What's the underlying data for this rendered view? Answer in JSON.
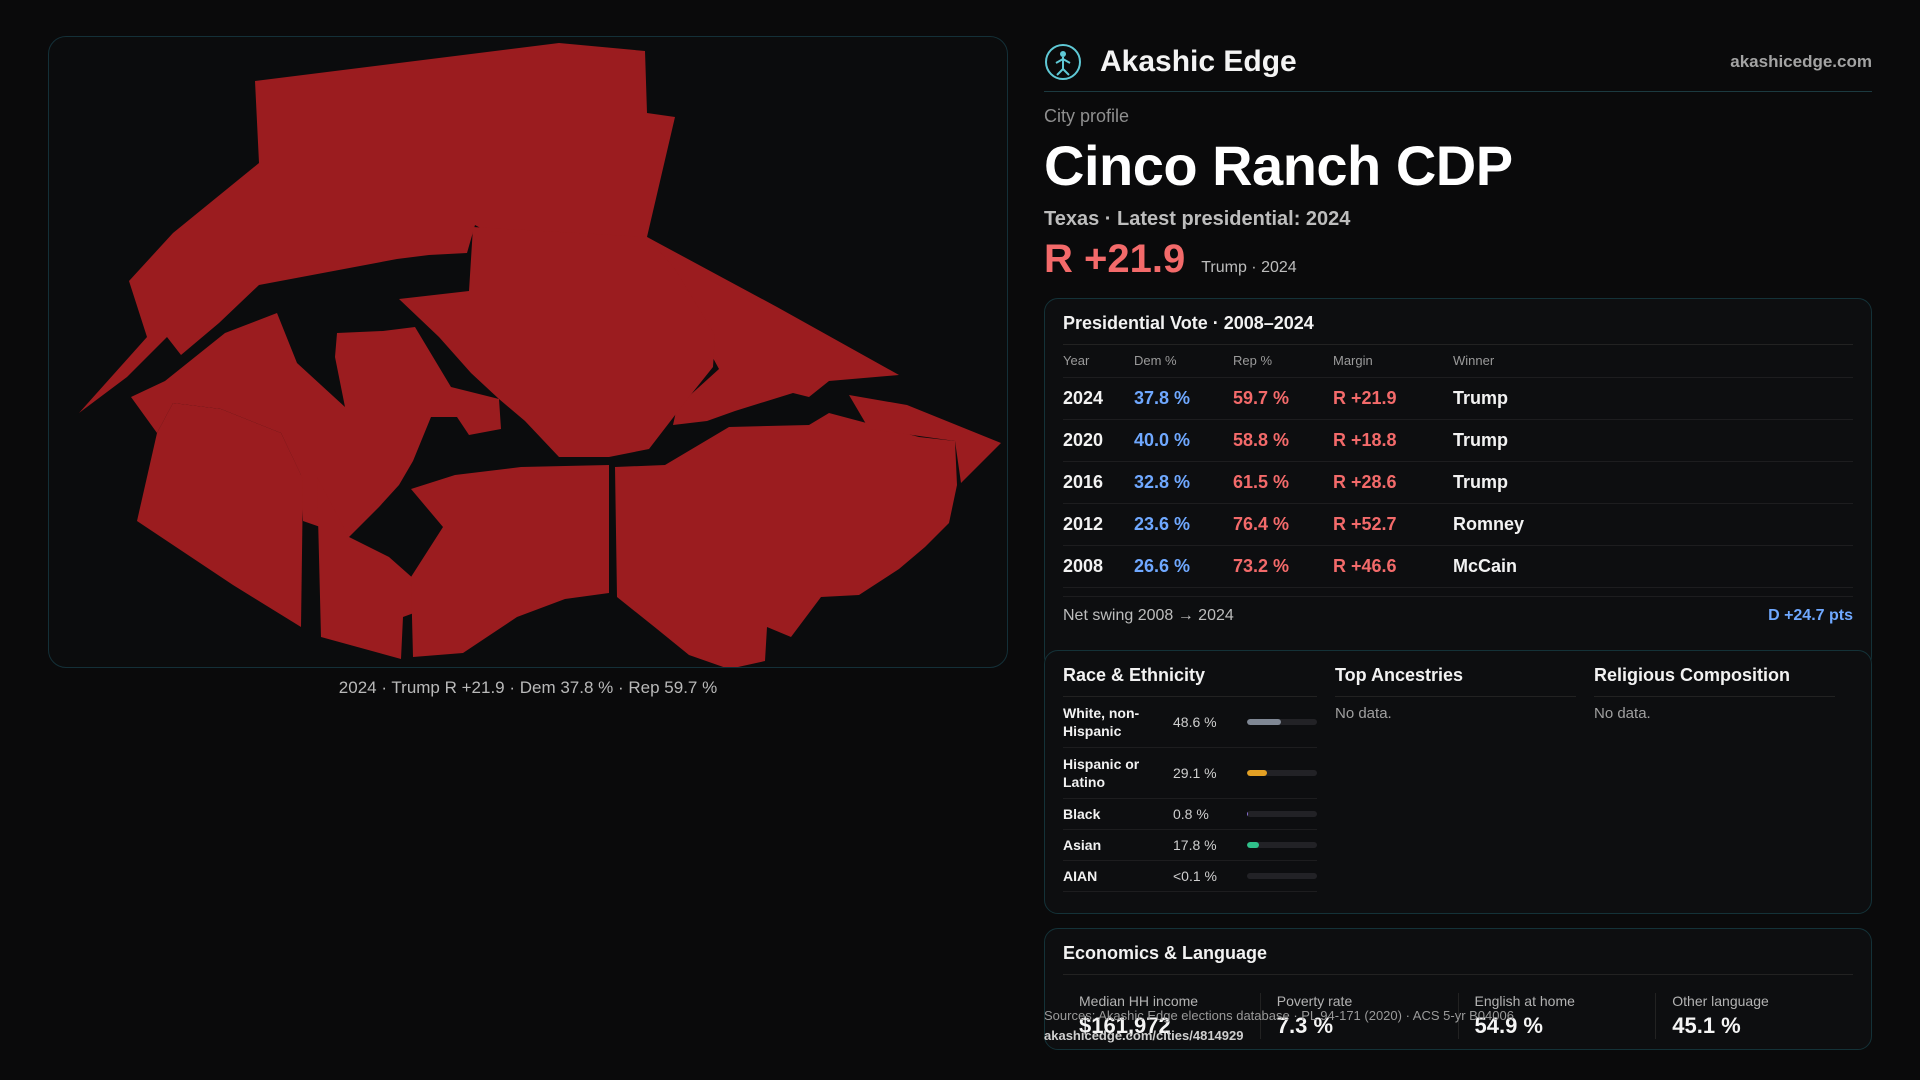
{
  "brand": {
    "name": "Akashic Edge",
    "url": "akashicedge.com"
  },
  "map": {
    "caption": "2024 · Trump R +21.9 · Dem 37.8 % · Rep 59.7 %",
    "fill_color": "#9b1c1f"
  },
  "profile": {
    "kicker": "City profile",
    "title": "Cinco Ranch CDP",
    "subline": "Texas · Latest presidential: 2024",
    "margin": "R +21.9",
    "margin_note": "Trump · 2024"
  },
  "presidential": {
    "title": "Presidential Vote · 2008–2024",
    "headers": [
      "Year",
      "Dem %",
      "Rep %",
      "Margin",
      "Winner"
    ],
    "rows": [
      {
        "year": "2024",
        "dem": "37.8 %",
        "rep": "59.7 %",
        "margin": "R +21.9",
        "winner": "Trump"
      },
      {
        "year": "2020",
        "dem": "40.0 %",
        "rep": "58.8 %",
        "margin": "R +18.8",
        "winner": "Trump"
      },
      {
        "year": "2016",
        "dem": "32.8 %",
        "rep": "61.5 %",
        "margin": "R +28.6",
        "winner": "Trump"
      },
      {
        "year": "2012",
        "dem": "23.6 %",
        "rep": "76.4 %",
        "margin": "R +52.7",
        "winner": "Romney"
      },
      {
        "year": "2008",
        "dem": "26.6 %",
        "rep": "73.2 %",
        "margin": "R +46.6",
        "winner": "McCain"
      }
    ],
    "swing_label": "Net swing 2008 → 2024",
    "swing_value": "D +24.7 pts"
  },
  "race": {
    "title": "Race & Ethnicity",
    "rows": [
      {
        "label": "White, non-Hispanic",
        "pct": "48.6 %",
        "share": 0.486,
        "color": "#7f8794"
      },
      {
        "label": "Hispanic or Latino",
        "pct": "29.1 %",
        "share": 0.291,
        "color": "#e3a024"
      },
      {
        "label": "Black",
        "pct": "0.8 %",
        "share": 0.008,
        "color": "#8a6fd6"
      },
      {
        "label": "Asian",
        "pct": "17.8 %",
        "share": 0.178,
        "color": "#2fc08a"
      },
      {
        "label": "AIAN",
        "pct": "<0.1 %",
        "share": 0.0,
        "color": "#c0c0c0"
      }
    ]
  },
  "ancestries": {
    "title": "Top Ancestries",
    "empty": "No data."
  },
  "religion": {
    "title": "Religious Composition",
    "empty": "No data."
  },
  "economics": {
    "title": "Economics & Language",
    "items": [
      {
        "label": "Median HH income",
        "value": "$161,972"
      },
      {
        "label": "Poverty rate",
        "value": "7.3 %"
      },
      {
        "label": "English at home",
        "value": "54.9 %"
      },
      {
        "label": "Other language",
        "value": "45.1 %"
      }
    ]
  },
  "footer": {
    "source": "Sources: Akashic Edge elections database · PL 94-171 (2020) · ACS 5-yr B04006",
    "url": "akashicedge.com/cities/4814929"
  }
}
